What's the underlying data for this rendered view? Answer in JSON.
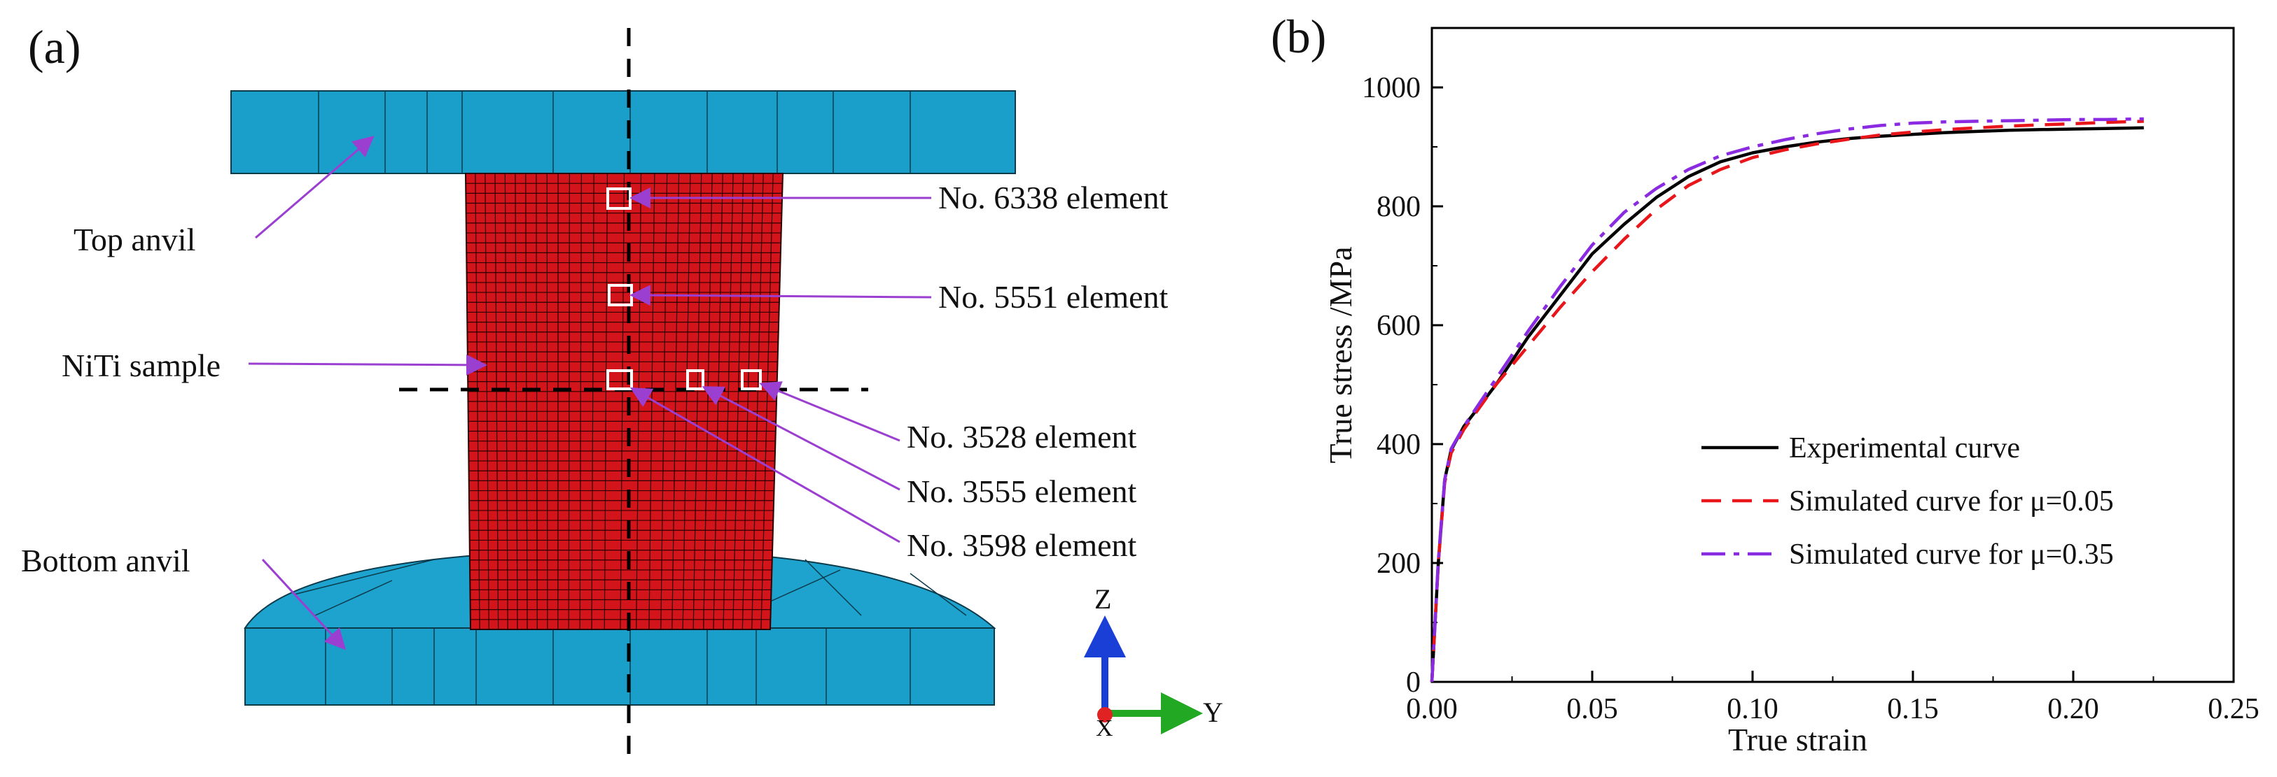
{
  "panel_a": {
    "label": "(a)",
    "parts": {
      "top_anvil": "Top anvil",
      "sample": "NiTi sample",
      "bottom_anvil": "Bottom anvil"
    },
    "elements": [
      "No. 6338 element",
      "No. 5551 element",
      "No. 3528 element",
      "No. 3555 element",
      "No. 3598 element"
    ],
    "axes": {
      "z": "Z",
      "y": "Y",
      "x": "X"
    },
    "colors": {
      "anvil": "#1a9fcb",
      "sample": "#d4141b",
      "arrow": "#9b3fd1",
      "z_axis": "#1a3fd6",
      "y_axis": "#22a822",
      "x_axis": "#e02222"
    }
  },
  "panel_b": {
    "label": "(b)"
  },
  "chart_data": {
    "type": "line",
    "xlabel": "True strain",
    "ylabel": "True stress /MPa",
    "xlim": [
      0,
      0.25
    ],
    "ylim": [
      0,
      1100
    ],
    "xticks": [
      0.0,
      0.05,
      0.1,
      0.15,
      0.2,
      0.25
    ],
    "xtick_labels": [
      "0.00",
      "0.05",
      "0.10",
      "0.15",
      "0.20",
      "0.25"
    ],
    "yticks": [
      0,
      200,
      400,
      600,
      800,
      1000
    ],
    "ytick_labels": [
      "0",
      "200",
      "400",
      "600",
      "800",
      "1000"
    ],
    "legend_position": "lower-right",
    "series": [
      {
        "name": "Experimental curve",
        "color": "#000000",
        "dash": "solid",
        "x": [
          0,
          0.002,
          0.004,
          0.006,
          0.01,
          0.02,
          0.03,
          0.04,
          0.05,
          0.06,
          0.07,
          0.08,
          0.09,
          0.1,
          0.11,
          0.12,
          0.13,
          0.14,
          0.15,
          0.16,
          0.17,
          0.18,
          0.19,
          0.2,
          0.21,
          0.222
        ],
        "y": [
          0,
          200,
          340,
          390,
          430,
          500,
          580,
          650,
          720,
          770,
          815,
          850,
          875,
          890,
          900,
          908,
          914,
          918,
          921,
          924,
          926,
          928,
          929,
          930,
          931,
          932
        ]
      },
      {
        "name": "Simulated curve for μ=0.05",
        "color": "#e8161b",
        "dash": "dashed",
        "x": [
          0,
          0.002,
          0.004,
          0.006,
          0.01,
          0.02,
          0.03,
          0.04,
          0.05,
          0.06,
          0.07,
          0.08,
          0.09,
          0.1,
          0.11,
          0.12,
          0.13,
          0.14,
          0.15,
          0.16,
          0.17,
          0.18,
          0.19,
          0.2,
          0.21,
          0.222
        ],
        "y": [
          0,
          200,
          335,
          385,
          425,
          500,
          565,
          630,
          690,
          745,
          795,
          835,
          862,
          882,
          895,
          905,
          913,
          920,
          925,
          929,
          932,
          935,
          937,
          939,
          941,
          943
        ]
      },
      {
        "name": "Simulated curve for μ=0.35",
        "color": "#8a2be2",
        "dash": "dashdot",
        "x": [
          0,
          0.002,
          0.004,
          0.006,
          0.01,
          0.02,
          0.03,
          0.04,
          0.05,
          0.06,
          0.07,
          0.08,
          0.09,
          0.1,
          0.11,
          0.12,
          0.13,
          0.14,
          0.15,
          0.16,
          0.17,
          0.18,
          0.19,
          0.2,
          0.21,
          0.222
        ],
        "y": [
          0,
          205,
          340,
          392,
          430,
          510,
          590,
          665,
          735,
          790,
          830,
          862,
          885,
          900,
          912,
          922,
          930,
          936,
          940,
          942,
          943,
          944,
          945,
          946,
          946,
          947
        ]
      }
    ]
  }
}
